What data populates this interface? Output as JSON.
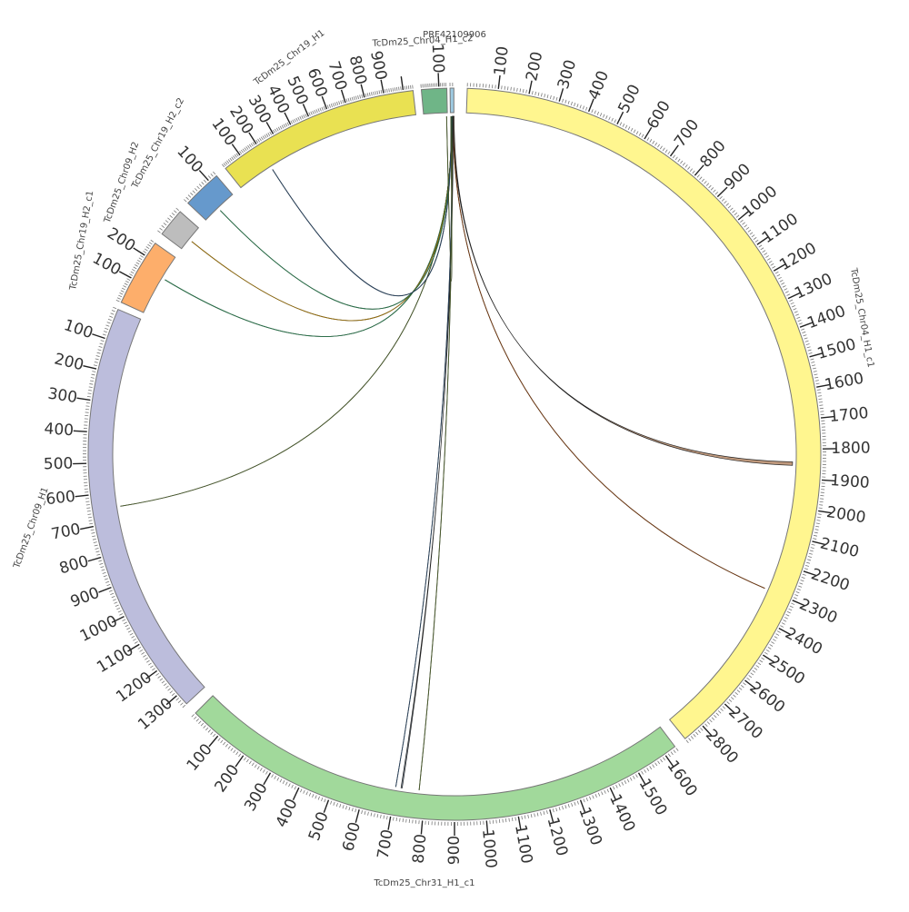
{
  "segments": [
    {
      "name": "TcDm25_Chr04_H1_c1",
      "length": 2870,
      "color": "#fff68f",
      "ticks": [
        100,
        200,
        300,
        400,
        500,
        600,
        700,
        800,
        900,
        1000,
        1100,
        1200,
        1300,
        1400,
        1500,
        1600,
        1700,
        1800,
        1900,
        2000,
        2100,
        2200,
        2300,
        2400,
        2500,
        2600,
        2700,
        2800
      ],
      "show_name": true,
      "label_rot": 80
    },
    {
      "name": "TcDm25_Chr31_H1_c1",
      "length": 1640,
      "color": "#a1d99b",
      "reverse": true,
      "ticks": [
        100,
        200,
        300,
        400,
        500,
        600,
        700,
        800,
        900,
        1000,
        1100,
        1200,
        1300,
        1400,
        1500,
        1600
      ],
      "show_name": true,
      "label_rot": 0
    },
    {
      "name": "TcDm25_Chr09_H1",
      "length": 1340,
      "color": "#bcbddc",
      "reverse": true,
      "ticks": [
        100,
        200,
        300,
        400,
        500,
        600,
        700,
        800,
        900,
        1000,
        1100,
        1200,
        1300
      ],
      "show_name": true,
      "label_rot": -70
    },
    {
      "name": "TcDm25_Chr19_H2_c1",
      "length": 260,
      "color": "#fdae6b",
      "ticks": [
        100,
        200
      ],
      "show_name": true,
      "label_rot": -80
    },
    {
      "name": "TcDm25_Chr09_H2",
      "length": 90,
      "color": "#bdbdbd",
      "ticks": [],
      "show_name": true,
      "label_rot": -70
    },
    {
      "name": "TcDm25_Chr19_H2_c2",
      "length": 130,
      "color": "#6699cc",
      "ticks": [
        100
      ],
      "show_name": true,
      "label_rot": -62
    },
    {
      "name": "TcDm25_Chr19_H1",
      "length": 1050,
      "color": "#e9e152",
      "ticks": [
        100,
        200,
        300,
        400,
        500,
        600,
        700,
        800,
        900
      ],
      "show_name": true,
      "label_rot": -37
    },
    {
      "name": "TcDm25_Chr04_H1_c2",
      "length": 145,
      "color": "#6fb587",
      "ticks": [
        100
      ],
      "show_name": true,
      "label_rot": -3
    },
    {
      "name": "PRF42109906",
      "length": 15,
      "color": "#9ecae1",
      "ticks": [],
      "show_name": true,
      "label_rot": 0
    }
  ],
  "links": [
    {
      "from": "PRF42109906",
      "from_pos": 12,
      "to": "TcDm25_Chr04_H1_c1",
      "to_pos": 1850,
      "color": "#8b4513",
      "width": 12
    },
    {
      "from": "PRF42109906",
      "from_pos": 10,
      "to": "TcDm25_Chr04_H1_c1",
      "to_pos": 2300,
      "color": "#8b4513",
      "width": 1
    },
    {
      "from": "PRF42109906",
      "from_pos": 8,
      "to": "TcDm25_Chr31_H1_c1",
      "to_pos": 720,
      "color": "#2f4f6f",
      "width": 4
    },
    {
      "from": "PRF42109906",
      "from_pos": 7,
      "to": "TcDm25_Chr31_H1_c1",
      "to_pos": 700,
      "color": "#2f4f6f",
      "width": 3
    },
    {
      "from": "PRF42109906",
      "from_pos": 6,
      "to": "TcDm25_Chr31_H1_c1",
      "to_pos": 780,
      "color": "#556b2f",
      "width": 1
    },
    {
      "from": "PRF42109906",
      "from_pos": 6,
      "to": "TcDm25_Chr09_H1",
      "to_pos": 650,
      "color": "#556b2f",
      "width": 1
    },
    {
      "from": "PRF42109906",
      "from_pos": 5,
      "to": "TcDm25_Chr19_H2_c1",
      "to_pos": 160,
      "color": "#2e8b57",
      "width": 1
    },
    {
      "from": "PRF42109906",
      "from_pos": 4,
      "to": "TcDm25_Chr09_H2",
      "to_pos": 40,
      "color": "#b8860b",
      "width": 3
    },
    {
      "from": "PRF42109906",
      "from_pos": 4,
      "to": "TcDm25_Chr19_H2_c2",
      "to_pos": 60,
      "color": "#2e8b57",
      "width": 1
    },
    {
      "from": "PRF42109906",
      "from_pos": 3,
      "to": "TcDm25_Chr19_H1",
      "to_pos": 200,
      "color": "#2f4f6f",
      "width": 1
    },
    {
      "from": "PRF42109906",
      "from_pos": 2,
      "to": "TcDm25_Chr04_H1_c2",
      "to_pos": 140,
      "color": "#556b2f",
      "width": 1
    }
  ]
}
